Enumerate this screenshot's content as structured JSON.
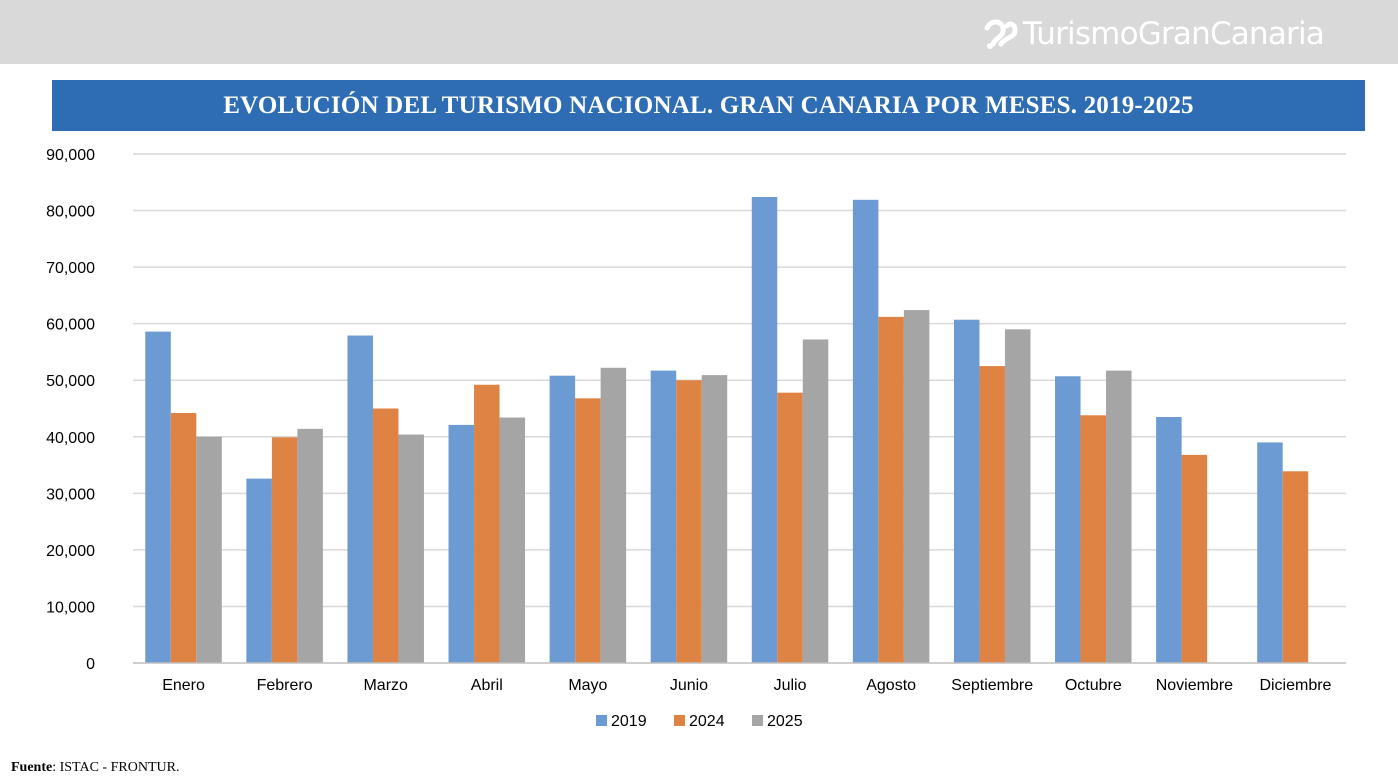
{
  "header": {
    "brand": "TurismoGranCanaria",
    "brand_icon": "gran-canaria-logo-icon"
  },
  "source": {
    "label": "Fuente",
    "text": ": ISTAC - FRONTUR."
  },
  "colors": {
    "title_bg": "#2e6db4",
    "series": [
      "#6b9bd2",
      "#df8344",
      "#a5a5a5"
    ]
  },
  "chart_data": {
    "type": "bar",
    "title": "EVOLUCIÓN DEL TURISMO NACIONAL. GRAN CANARIA POR MESES. 2019-2025",
    "xlabel": "",
    "ylabel": "",
    "ylim": [
      0,
      90000
    ],
    "yticks": [
      "0",
      "10,000",
      "20,000",
      "30,000",
      "40,000",
      "50,000",
      "60,000",
      "70,000",
      "80,000",
      "90,000"
    ],
    "grid": true,
    "legend_position": "bottom",
    "categories": [
      "Enero",
      "Febrero",
      "Marzo",
      "Abril",
      "Mayo",
      "Junio",
      "Julio",
      "Agosto",
      "Septiembre",
      "Octubre",
      "Noviembre",
      "Diciembre"
    ],
    "series": [
      {
        "name": "2019",
        "values": [
          58600,
          32600,
          57900,
          42100,
          50800,
          51700,
          82400,
          81900,
          60700,
          50700,
          43500,
          39000
        ]
      },
      {
        "name": "2024",
        "values": [
          44200,
          39900,
          45000,
          49200,
          46800,
          50000,
          47800,
          61200,
          52500,
          43800,
          36800,
          33900
        ]
      },
      {
        "name": "2025",
        "values": [
          40000,
          41400,
          40400,
          43400,
          52200,
          50900,
          57200,
          62400,
          59000,
          51700,
          null,
          null
        ]
      }
    ]
  }
}
